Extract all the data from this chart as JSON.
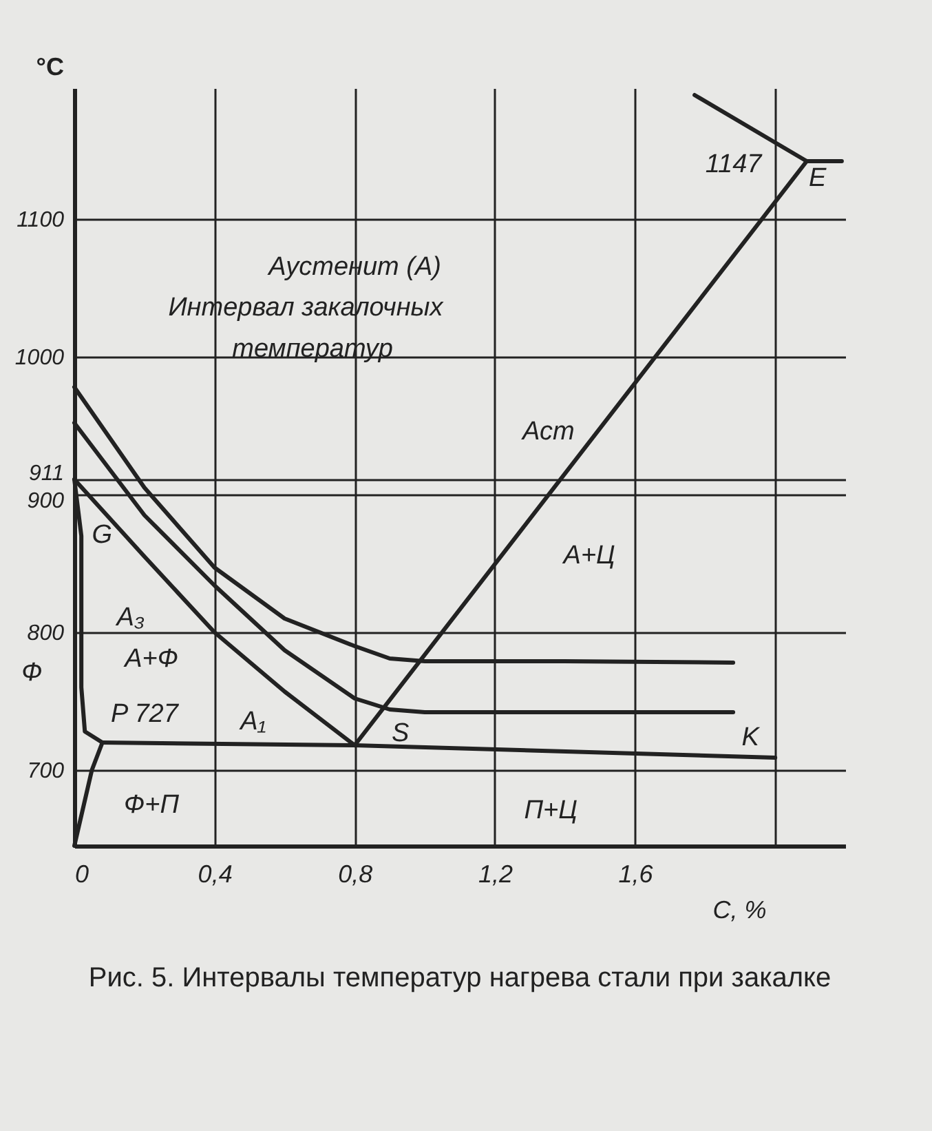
{
  "chart_data": {
    "type": "line",
    "title": "Рис. 5. Интервалы температур нагрева стали при закалке",
    "xlabel": "C, %",
    "ylabel": "°C",
    "xlim": [
      0,
      2.2
    ],
    "ylim": [
      645,
      1195
    ],
    "xticks": [
      0,
      {
        "value": 0.4,
        "label": "0,4"
      },
      {
        "value": 0.8,
        "label": "0,8"
      },
      {
        "value": 1.2,
        "label": "1,2"
      },
      {
        "value": 1.6,
        "label": "1,6"
      },
      {
        "value": 2.0,
        "label": null
      }
    ],
    "yticks": [
      700,
      800,
      900,
      911,
      1000,
      1100
    ],
    "grid": true,
    "line_style": "solid",
    "series": [
      {
        "color": "#222222",
        "x": [
          0,
          0.2,
          0.4,
          0.6,
          0.8,
          0.9,
          1.0,
          1.4,
          1.88
        ],
        "values": [
          978,
          905,
          847,
          810,
          790,
          781,
          779,
          779,
          778
        ]
      },
      {
        "color": "#222222",
        "x": [
          0,
          0.2,
          0.4,
          0.6,
          0.8,
          0.9,
          1.0,
          1.4,
          1.88
        ],
        "values": [
          952,
          885,
          834,
          787,
          752,
          744,
          742,
          742,
          742
        ]
      },
      {
        "color": "#222222",
        "x": [
          0,
          0.2,
          0.4,
          0.6,
          0.8
        ],
        "values": [
          911,
          855,
          800,
          757,
          718
        ]
      },
      {
        "color": "#222222",
        "x": [
          0,
          0.02,
          0.02,
          0.03,
          0.08
        ],
        "values": [
          911,
          870,
          760,
          728,
          720
        ]
      },
      {
        "color": "#222222",
        "x": [
          0.08,
          0.05,
          0
        ],
        "values": [
          720,
          700,
          645
        ]
      },
      {
        "color": "#222222",
        "x": [
          0.08,
          0.8,
          2.0
        ],
        "values": [
          720,
          718,
          709
        ]
      },
      {
        "color": "#222222",
        "x": [
          0.8,
          2.09
        ],
        "values": [
          718,
          1142
        ]
      },
      {
        "color": "#222222",
        "x": [
          1.77,
          2.09,
          2.19
        ],
        "values": [
          1190,
          1142,
          1142
        ]
      }
    ],
    "annotations": [
      "Аустенит (А)",
      "Интервал закалочных",
      "температур",
      "Аст",
      "А+Ц",
      "G",
      "A₃",
      "А+Ф",
      "Ф",
      "P 727",
      "A₁",
      "S",
      "K",
      "Ф+П",
      "П+Ц",
      "1147",
      "E"
    ]
  }
}
